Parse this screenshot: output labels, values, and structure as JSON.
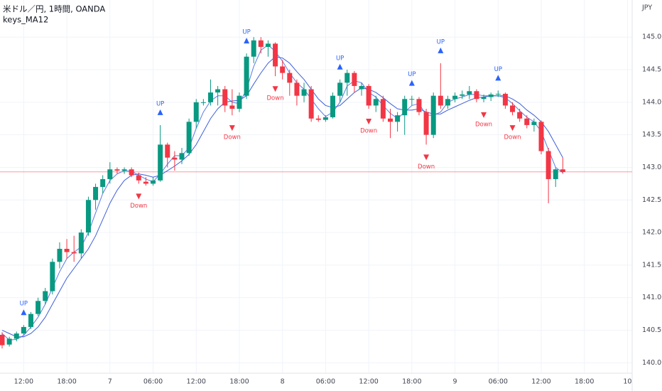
{
  "chart_data": {
    "type": "candlestick",
    "title": "米ドル／円, 1時間, OANDA",
    "indicator_title": "keys_MA12",
    "currency": "JPY",
    "categories": [
      null,
      null,
      null,
      "12:00",
      null,
      null,
      null,
      null,
      null,
      "18:00",
      null,
      null,
      null,
      null,
      null,
      "7",
      null,
      null,
      null,
      null,
      null,
      "06:00",
      null,
      null,
      null,
      null,
      null,
      "12:00",
      null,
      null,
      null,
      null,
      null,
      "18:00",
      null,
      null,
      null,
      null,
      null,
      "8",
      null,
      null,
      null,
      null,
      null,
      "06:00",
      null,
      null,
      null,
      null,
      null,
      "12:00",
      null,
      null,
      null,
      null,
      null,
      "18:00",
      null,
      null,
      null,
      null,
      null,
      "9",
      null,
      null,
      null,
      null,
      null,
      "06:00",
      null,
      null,
      null,
      null,
      null,
      "12:00",
      null,
      null,
      null,
      null,
      null,
      "18:00",
      null,
      null,
      null,
      null,
      null,
      "10"
    ],
    "open": [
      140.43,
      140.28,
      140.37,
      140.45,
      140.55,
      140.75,
      140.95,
      141.1,
      141.55,
      141.75,
      141.7,
      141.68,
      142.0,
      142.5,
      142.7,
      142.82,
      142.97,
      142.95,
      142.97,
      142.88,
      142.78,
      142.75,
      142.8,
      143.35,
      143.15,
      143.12,
      143.22,
      143.7,
      144.0,
      144.0,
      144.15,
      144.2,
      143.95,
      143.9,
      144.1,
      144.7,
      144.95,
      144.85,
      144.9,
      144.55,
      144.45,
      144.3,
      144.1,
      144.2,
      143.75,
      143.73,
      143.77,
      144.1,
      144.3,
      144.45,
      144.2,
      144.25,
      143.95,
      144.05,
      143.75,
      143.7,
      143.8,
      144.05,
      144.05,
      143.85,
      143.5,
      144.1,
      143.95,
      144.05,
      144.1,
      144.12,
      144.17,
      144.05,
      144.08,
      144.12,
      144.13,
      143.95,
      143.85,
      143.75,
      143.65,
      143.7,
      143.25,
      142.82,
      142.97,
      null,
      null,
      null,
      null,
      null,
      null,
      null,
      null,
      null
    ],
    "high": [
      140.47,
      140.4,
      140.48,
      140.58,
      140.78,
      141.0,
      141.15,
      141.6,
      141.85,
      141.9,
      141.95,
      142.05,
      142.55,
      142.75,
      142.88,
      143.08,
      143.0,
      143.0,
      143.0,
      142.92,
      142.85,
      142.85,
      143.65,
      143.38,
      143.25,
      143.3,
      143.75,
      144.05,
      144.05,
      144.35,
      144.25,
      144.25,
      144.2,
      144.15,
      144.75,
      145.0,
      145.0,
      144.95,
      144.92,
      144.65,
      144.5,
      144.35,
      144.3,
      144.25,
      143.8,
      143.8,
      144.15,
      144.35,
      144.5,
      144.48,
      144.3,
      144.28,
      144.1,
      144.1,
      143.9,
      143.85,
      144.1,
      144.1,
      144.08,
      143.9,
      144.15,
      144.6,
      144.1,
      144.15,
      144.18,
      144.25,
      144.2,
      144.12,
      144.15,
      144.18,
      144.15,
      144.0,
      143.9,
      143.8,
      143.75,
      143.72,
      143.3,
      143.0,
      143.15,
      null,
      null,
      null,
      null,
      null,
      null,
      null,
      null,
      null
    ],
    "low": [
      140.22,
      140.25,
      140.33,
      140.42,
      140.52,
      140.72,
      140.9,
      141.05,
      141.45,
      141.6,
      141.55,
      141.6,
      141.95,
      142.35,
      142.6,
      142.75,
      142.9,
      142.9,
      142.85,
      142.75,
      142.72,
      142.72,
      142.78,
      143.0,
      142.95,
      143.05,
      143.18,
      143.6,
      143.95,
      143.95,
      143.95,
      143.85,
      143.8,
      143.85,
      144.05,
      144.6,
      144.75,
      144.7,
      144.4,
      144.35,
      144.1,
      143.95,
      144.0,
      143.7,
      143.7,
      143.7,
      143.75,
      144.0,
      144.1,
      144.15,
      144.1,
      143.9,
      143.85,
      143.7,
      143.45,
      143.55,
      143.5,
      143.95,
      143.8,
      143.35,
      143.45,
      143.9,
      143.9,
      144.0,
      144.05,
      144.05,
      144.0,
      144.0,
      144.02,
      144.08,
      143.9,
      143.8,
      143.7,
      143.6,
      143.55,
      143.2,
      142.45,
      142.7,
      142.9,
      null,
      null,
      null,
      null,
      null,
      null,
      null,
      null,
      null
    ],
    "close": [
      140.27,
      140.37,
      140.45,
      140.55,
      140.75,
      140.95,
      141.1,
      141.55,
      141.75,
      141.7,
      141.68,
      142.0,
      142.5,
      142.7,
      142.82,
      142.97,
      142.95,
      142.97,
      142.88,
      142.8,
      142.75,
      142.8,
      143.35,
      143.15,
      143.12,
      143.22,
      143.7,
      144.0,
      144.0,
      144.15,
      144.2,
      143.95,
      143.9,
      144.1,
      144.7,
      144.95,
      144.85,
      144.9,
      144.55,
      144.45,
      144.3,
      144.1,
      144.2,
      143.75,
      143.73,
      143.77,
      144.1,
      144.3,
      144.45,
      144.25,
      144.25,
      143.95,
      144.05,
      143.75,
      143.7,
      143.8,
      144.05,
      144.05,
      143.85,
      143.5,
      144.1,
      143.95,
      144.05,
      144.1,
      144.12,
      144.17,
      144.05,
      144.08,
      144.12,
      144.13,
      143.95,
      143.85,
      143.75,
      143.65,
      143.7,
      143.25,
      142.82,
      142.97,
      142.93,
      null,
      null,
      null,
      null,
      null,
      null,
      null,
      null,
      null
    ],
    "up_color": "#089981",
    "down_color": "#f23645",
    "last_price_color": "#f23645",
    "lines": [
      {
        "color": "#5b7be6",
        "values": [
          140.45,
          140.35,
          140.36,
          140.42,
          140.55,
          140.7,
          140.9,
          141.15,
          141.4,
          141.6,
          141.7,
          141.78,
          142.0,
          142.3,
          142.6,
          142.8,
          142.9,
          142.95,
          142.94,
          142.88,
          142.82,
          142.78,
          142.9,
          143.05,
          143.18,
          143.18,
          143.3,
          143.6,
          143.85,
          144.02,
          144.1,
          144.1,
          144.0,
          143.98,
          144.2,
          144.55,
          144.8,
          144.88,
          144.78,
          144.63,
          144.45,
          144.3,
          144.2,
          144.05,
          143.9,
          143.78,
          143.85,
          144.0,
          144.25,
          144.33,
          144.3,
          144.15,
          144.08,
          143.95,
          143.83,
          143.75,
          143.85,
          143.95,
          143.98,
          143.8,
          143.8,
          143.85,
          144.0,
          144.05,
          144.08,
          144.12,
          144.12,
          144.1,
          144.1,
          144.1,
          144.07,
          143.98,
          143.87,
          143.77,
          143.7,
          143.55,
          143.27,
          143.0,
          142.92,
          null,
          null,
          null,
          null,
          null,
          null,
          null,
          null,
          null
        ]
      },
      {
        "color": "#3f5fd8",
        "values": [
          140.5,
          140.45,
          140.4,
          140.4,
          140.45,
          140.55,
          140.7,
          140.9,
          141.1,
          141.3,
          141.45,
          141.6,
          141.75,
          141.95,
          142.2,
          142.45,
          142.65,
          142.8,
          142.88,
          142.9,
          142.88,
          142.85,
          142.88,
          142.95,
          143.02,
          143.1,
          143.2,
          143.35,
          143.55,
          143.75,
          143.9,
          144.0,
          144.02,
          144.03,
          144.1,
          144.28,
          144.45,
          144.6,
          144.7,
          144.68,
          144.6,
          144.47,
          144.35,
          144.2,
          144.05,
          143.95,
          143.92,
          143.95,
          144.05,
          144.15,
          144.22,
          144.2,
          144.15,
          144.07,
          143.98,
          143.9,
          143.88,
          143.88,
          143.9,
          143.85,
          143.82,
          143.82,
          143.88,
          143.93,
          143.98,
          144.03,
          144.07,
          144.08,
          144.1,
          144.1,
          144.1,
          144.05,
          143.98,
          143.88,
          143.8,
          143.7,
          143.55,
          143.35,
          143.15,
          null,
          null,
          null,
          null,
          null,
          null,
          null,
          null,
          null
        ]
      }
    ],
    "signals": [
      {
        "at": 3,
        "label": "UP",
        "color": "#2962ff"
      },
      {
        "at": 22,
        "label": "UP",
        "color": "#2962ff"
      },
      {
        "at": 34,
        "label": "UP",
        "color": "#2962ff"
      },
      {
        "at": 47,
        "label": "UP",
        "color": "#2962ff"
      },
      {
        "at": 57,
        "label": "UP",
        "color": "#2962ff"
      },
      {
        "at": 61,
        "label": "UP",
        "color": "#2962ff"
      },
      {
        "at": 69,
        "label": "UP",
        "color": "#2962ff"
      },
      {
        "at": 19,
        "label": "Down",
        "color": "#f23645"
      },
      {
        "at": 32,
        "label": "Down",
        "color": "#f23645"
      },
      {
        "at": 38,
        "label": "Down",
        "color": "#f23645"
      },
      {
        "at": 51,
        "label": "Down",
        "color": "#f23645"
      },
      {
        "at": 59,
        "label": "Down",
        "color": "#f23645"
      },
      {
        "at": 67,
        "label": "Down",
        "color": "#f23645"
      },
      {
        "at": 71,
        "label": "Down",
        "color": "#f23645"
      }
    ],
    "ylim": [
      139.84,
      145.57
    ],
    "yticks": [
      {
        "value": 140,
        "label": "140.000"
      },
      {
        "value": 140.5,
        "label": "140.500"
      },
      {
        "value": 141,
        "label": "141.000"
      },
      {
        "value": 141.5,
        "label": "141.500"
      },
      {
        "value": 142,
        "label": "142.000"
      },
      {
        "value": 142.5,
        "label": "142.500"
      },
      {
        "value": 143,
        "label": "143.000"
      },
      {
        "value": 143.5,
        "label": "143.500"
      },
      {
        "value": 144,
        "label": "144.000"
      },
      {
        "value": 144.5,
        "label": "144.500"
      },
      {
        "value": 145,
        "label": "145.000"
      }
    ],
    "grid": true
  }
}
